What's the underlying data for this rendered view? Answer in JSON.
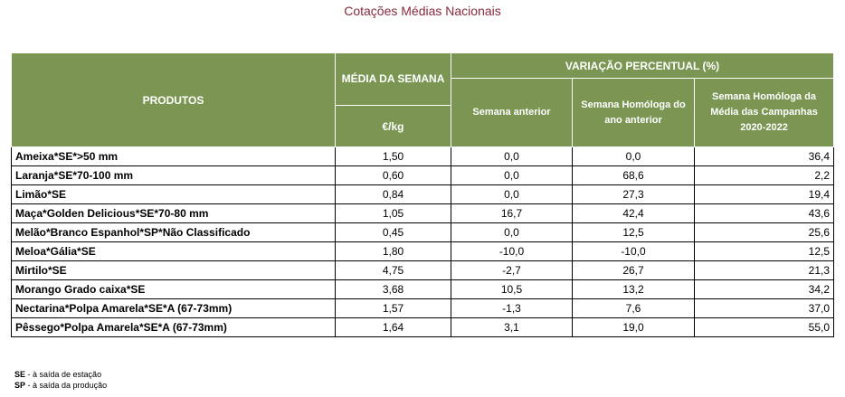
{
  "title": "Cotações Médias Nacionais",
  "headers": {
    "produtos": "PRODUTOS",
    "media": "MÉDIA DA SEMANA",
    "unit": "€/kg",
    "variacao": "VARIAÇÃO PERCENTUAL (%)",
    "sem_anterior": "Semana anterior",
    "sem_homologa": "Semana Homóloga do ano anterior",
    "sem_campanhas": "Semana Homóloga da Média das Campanhas 2020-2022"
  },
  "rows": [
    {
      "produto": "Ameixa*SE*>50 mm",
      "media": "1,50",
      "anterior": "0,0",
      "homologa": "0,0",
      "campanhas": "36,4"
    },
    {
      "produto": "Laranja*SE*70-100 mm",
      "media": "0,60",
      "anterior": "0,0",
      "homologa": "68,6",
      "campanhas": "2,2"
    },
    {
      "produto": "Limão*SE",
      "media": "0,84",
      "anterior": "0,0",
      "homologa": "27,3",
      "campanhas": "19,4"
    },
    {
      "produto": "Maça*Golden Delicious*SE*70-80 mm",
      "media": "1,05",
      "anterior": "16,7",
      "homologa": "42,4",
      "campanhas": "43,6"
    },
    {
      "produto": "Melão*Branco Espanhol*SP*Não Classificado",
      "media": "0,45",
      "anterior": "0,0",
      "homologa": "12,5",
      "campanhas": "25,6"
    },
    {
      "produto": "Meloa*Gália*SE",
      "media": "1,80",
      "anterior": "-10,0",
      "homologa": "-10,0",
      "campanhas": "12,5"
    },
    {
      "produto": "Mirtilo*SE",
      "media": "4,75",
      "anterior": "-2,7",
      "homologa": "26,7",
      "campanhas": "21,3"
    },
    {
      "produto": "Morango Grado caixa*SE",
      "media": "3,68",
      "anterior": "10,5",
      "homologa": "13,2",
      "campanhas": "34,2"
    },
    {
      "produto": "Nectarina*Polpa Amarela*SE*A (67-73mm)",
      "media": "1,57",
      "anterior": "-1,3",
      "homologa": "7,6",
      "campanhas": "37,0"
    },
    {
      "produto": "Pêssego*Polpa Amarela*SE*A (67-73mm)",
      "media": "1,64",
      "anterior": "3,1",
      "homologa": "19,0",
      "campanhas": "55,0"
    }
  ],
  "footnotes": [
    {
      "code": "SE",
      "text": " - à saída de estação"
    },
    {
      "code": "SP",
      "text": " - à saída da produção"
    }
  ]
}
